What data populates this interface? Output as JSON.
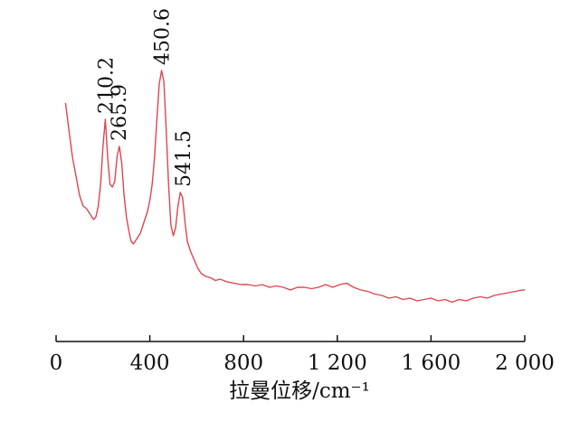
{
  "chart_data": {
    "type": "line",
    "title": "",
    "xlabel": "拉曼位移/cm⁻¹",
    "ylabel": "",
    "xlim": [
      0,
      2000
    ],
    "ylim": [
      0,
      1
    ],
    "xticks": [
      {
        "value": 0,
        "label": "0"
      },
      {
        "value": 400,
        "label": "400"
      },
      {
        "value": 800,
        "label": "800"
      },
      {
        "value": 1200,
        "label": "1 200"
      },
      {
        "value": 1600,
        "label": "1 600"
      },
      {
        "value": 2000,
        "label": "2 000"
      }
    ],
    "grid": false,
    "line_color": "#e0454f",
    "peak_labels": [
      {
        "x": 210.2,
        "y": 0.76,
        "label": "210.2"
      },
      {
        "x": 265.9,
        "y": 0.66,
        "label": "265.9"
      },
      {
        "x": 450.6,
        "y": 0.94,
        "label": "450.6"
      },
      {
        "x": 541.5,
        "y": 0.49,
        "label": "541.5"
      }
    ],
    "series": [
      {
        "x": [
          40,
          55,
          70,
          85,
          100,
          115,
          130,
          145,
          160,
          170,
          180,
          190,
          200,
          210,
          220,
          230,
          240,
          250,
          260,
          270,
          280,
          290,
          300,
          310,
          320,
          330,
          345,
          360,
          375,
          390,
          400,
          410,
          420,
          430,
          440,
          450,
          460,
          470,
          480,
          490,
          500,
          510,
          520,
          530,
          540,
          550,
          560,
          575,
          590,
          605,
          620,
          640,
          660,
          680,
          700,
          730,
          760,
          790,
          820,
          850,
          880,
          910,
          940,
          970,
          1000,
          1030,
          1060,
          1090,
          1120,
          1150,
          1180,
          1210,
          1240,
          1270,
          1300,
          1330,
          1360,
          1390,
          1420,
          1450,
          1480,
          1510,
          1540,
          1570,
          1600,
          1630,
          1660,
          1690,
          1720,
          1750,
          1780,
          1810,
          1840,
          1870,
          1900,
          1930,
          1960,
          1990,
          2000
        ],
        "y": [
          0.82,
          0.72,
          0.62,
          0.55,
          0.48,
          0.44,
          0.43,
          0.41,
          0.39,
          0.4,
          0.44,
          0.52,
          0.66,
          0.76,
          0.62,
          0.52,
          0.51,
          0.53,
          0.62,
          0.66,
          0.6,
          0.48,
          0.4,
          0.35,
          0.31,
          0.3,
          0.32,
          0.34,
          0.38,
          0.42,
          0.46,
          0.52,
          0.62,
          0.76,
          0.89,
          0.94,
          0.9,
          0.72,
          0.52,
          0.37,
          0.33,
          0.36,
          0.44,
          0.49,
          0.47,
          0.38,
          0.31,
          0.27,
          0.24,
          0.21,
          0.19,
          0.18,
          0.175,
          0.165,
          0.17,
          0.16,
          0.155,
          0.15,
          0.15,
          0.145,
          0.15,
          0.14,
          0.145,
          0.14,
          0.13,
          0.14,
          0.14,
          0.135,
          0.14,
          0.15,
          0.14,
          0.15,
          0.155,
          0.14,
          0.13,
          0.125,
          0.115,
          0.11,
          0.1,
          0.105,
          0.095,
          0.1,
          0.09,
          0.095,
          0.1,
          0.09,
          0.095,
          0.085,
          0.095,
          0.09,
          0.1,
          0.105,
          0.1,
          0.11,
          0.115,
          0.12,
          0.125,
          0.13,
          0.13
        ]
      }
    ]
  }
}
